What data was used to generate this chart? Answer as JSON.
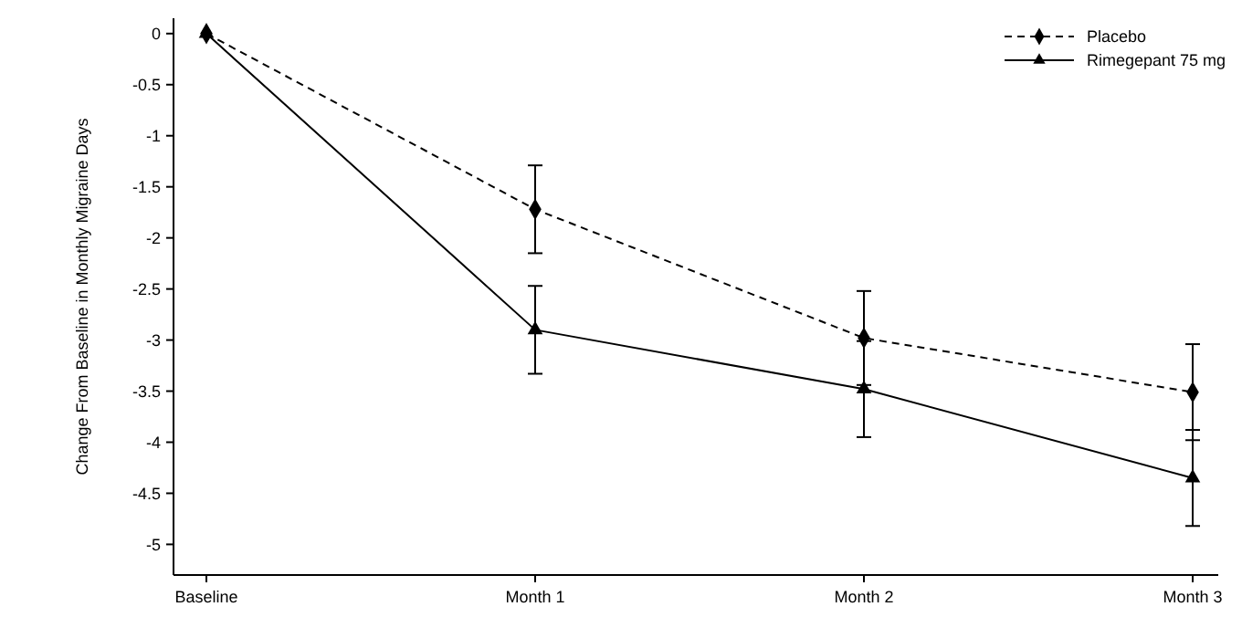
{
  "chart_data": {
    "type": "line",
    "ylabel": "Change From Baseline in Monthly Migraine Days",
    "categories": [
      "Baseline",
      "Month 1",
      "Month 2",
      "Month 3"
    ],
    "series": [
      {
        "name": "Placebo",
        "color": "#000000",
        "values": [
          0,
          -1.72,
          -2.98,
          -3.51
        ],
        "errors": [
          null,
          0.43,
          0.46,
          0.47
        ],
        "marker": "diamond",
        "line_style": "dashed"
      },
      {
        "name": "Rimegepant 75 mg",
        "color": "#000000",
        "values": [
          0,
          -2.9,
          -3.48,
          -4.35
        ],
        "errors": [
          null,
          0.43,
          0.47,
          0.47
        ],
        "marker": "triangle",
        "line_style": "solid"
      }
    ],
    "ylim": [
      -5.3,
      0.15
    ],
    "yticks": [
      0,
      -0.5,
      -1,
      -1.5,
      -2,
      -2.5,
      -3,
      -3.5,
      -4,
      -4.5,
      -5
    ],
    "grid": false,
    "legend": "top right"
  }
}
